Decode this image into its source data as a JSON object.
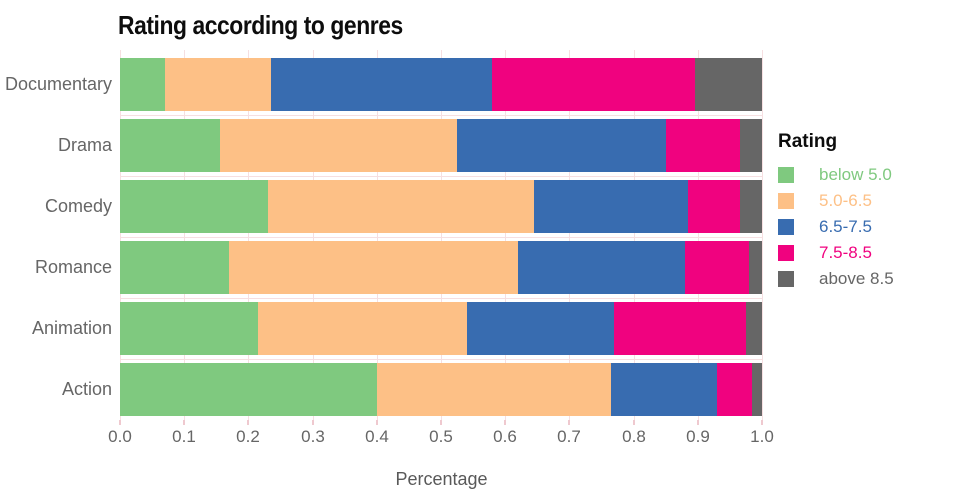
{
  "chart_data": {
    "type": "bar",
    "orientation": "horizontal-stacked",
    "title": "Rating according to genres",
    "xlabel": "Percentage",
    "ylabel": "",
    "xlim": [
      0,
      1
    ],
    "xticks": [
      "0.0",
      "0.1",
      "0.2",
      "0.3",
      "0.4",
      "0.5",
      "0.6",
      "0.7",
      "0.8",
      "0.9",
      "1.0"
    ],
    "grid": true,
    "legend_title": "Rating",
    "legend_position": "right",
    "categories": [
      "Documentary",
      "Drama",
      "Comedy",
      "Romance",
      "Animation",
      "Action"
    ],
    "series": [
      {
        "name": "below 5.0",
        "color": "#7FC97F",
        "values": [
          0.07,
          0.155,
          0.23,
          0.17,
          0.215,
          0.4
        ]
      },
      {
        "name": "5.0-6.5",
        "color": "#FDC086",
        "values": [
          0.165,
          0.37,
          0.415,
          0.45,
          0.325,
          0.365
        ]
      },
      {
        "name": "6.5-7.5",
        "color": "#386CB0",
        "values": [
          0.345,
          0.325,
          0.24,
          0.26,
          0.23,
          0.165
        ]
      },
      {
        "name": "7.5-8.5",
        "color": "#F0027F",
        "values": [
          0.315,
          0.115,
          0.08,
          0.1,
          0.205,
          0.055
        ]
      },
      {
        "name": "above 8.5",
        "color": "#666666",
        "values": [
          0.105,
          0.035,
          0.035,
          0.02,
          0.025,
          0.015
        ]
      }
    ]
  },
  "palette": {
    "background": "#ffffff",
    "grid_color": "#f6dfe1",
    "tick_color": "#efc9cf",
    "axis_text": "#666666",
    "title_text": "#0d0d0d"
  }
}
